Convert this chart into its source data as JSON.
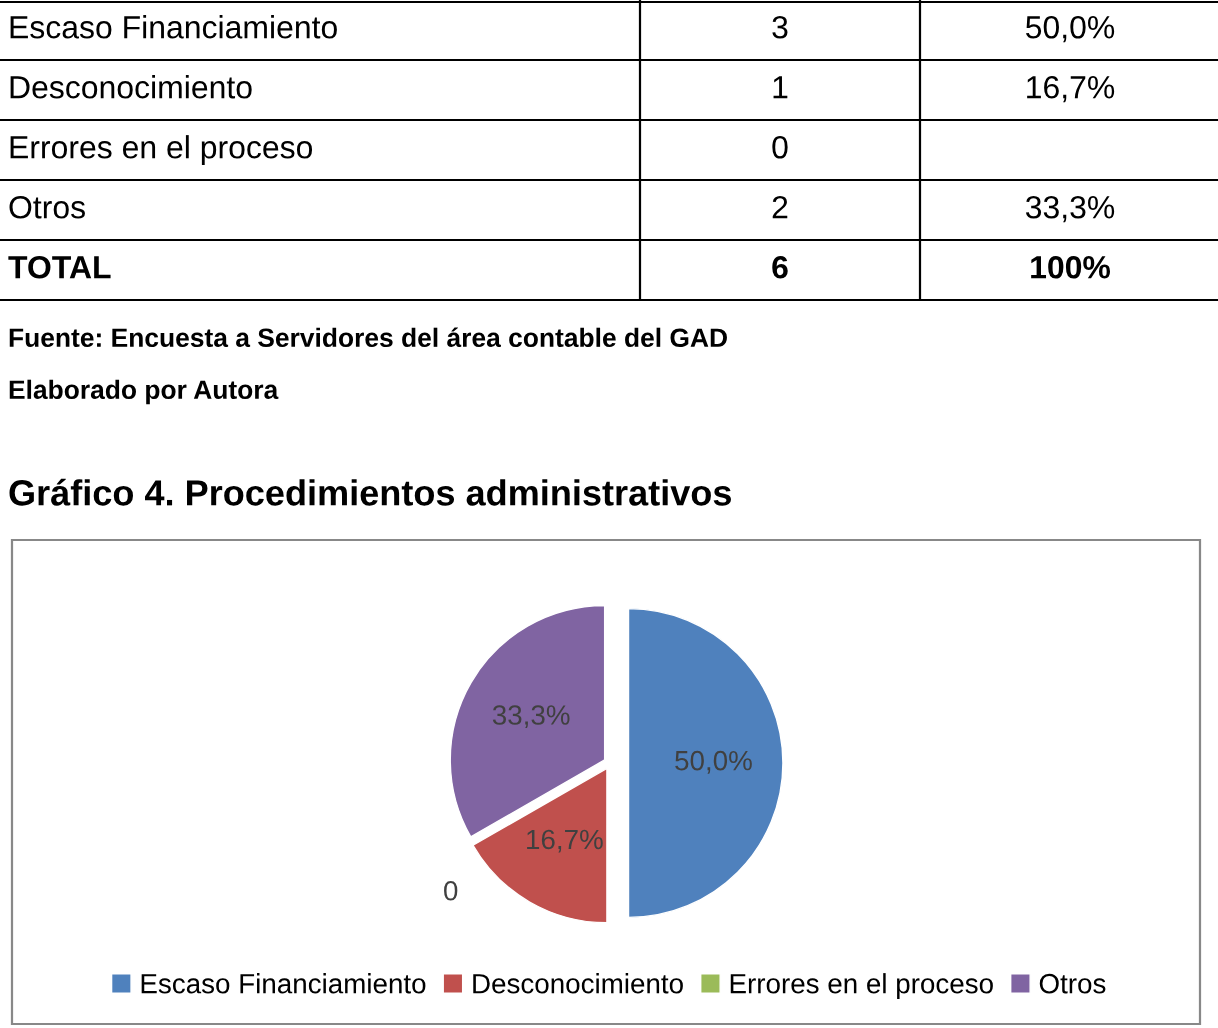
{
  "chart_data": [
    {
      "type": "other",
      "annotations": [
        "Escaso Financiamiento",
        "3",
        "50,0%",
        "Desconocimiento",
        "1",
        "16,7%",
        "Errores en el proceso",
        "0",
        null,
        "Otros",
        "2",
        "33,3%",
        "TOTAL",
        "6",
        "100%",
        "Fuente: Encuesta a Servidores del área contable del GAD",
        "Elaborado por Autora"
      ]
    },
    {
      "type": "pie",
      "title": "Gráfico 4. Procedimientos administrativos",
      "categories": [
        "Escaso Financiamiento",
        "Desconocimiento",
        "Errores en el proceso",
        "Otros"
      ],
      "values": [
        50.0,
        16.7,
        0,
        33.3
      ],
      "colors": [
        "#4f81bd",
        "#c0504d",
        "#9bbb59",
        "#8064a2"
      ],
      "value_labels": [
        "50,0%",
        "16,7%",
        "0",
        "33,3%"
      ],
      "legend": "bottom"
    }
  ]
}
